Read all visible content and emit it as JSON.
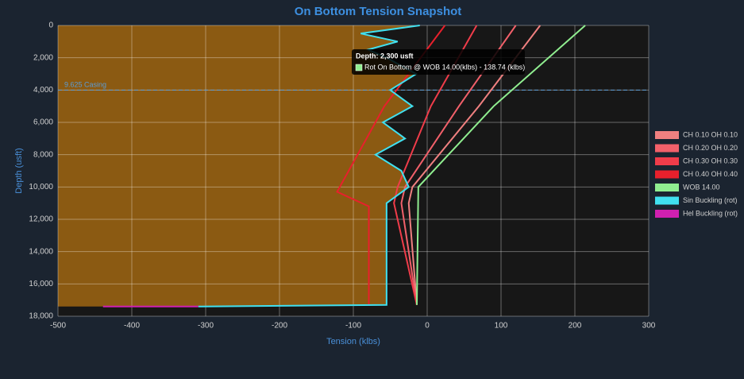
{
  "chart_data": {
    "type": "line",
    "title": "On Bottom Tension Snapshot",
    "x_label": "Tension (klbs)",
    "y_label": "Depth (usft)",
    "xlim": [
      -500,
      300
    ],
    "xticks": [
      -500,
      -400,
      -300,
      -200,
      -100,
      0,
      100,
      200,
      300
    ],
    "ylim": [
      0,
      18000
    ],
    "yticks": [
      0,
      {
        "value": 2000,
        "label": "2,000"
      },
      {
        "value": 4000,
        "label": "4,000"
      },
      {
        "value": 6000,
        "label": "6,000"
      },
      {
        "value": 8000,
        "label": "8,000"
      },
      {
        "value": 10000,
        "label": "10,000"
      },
      {
        "value": 12000,
        "label": "12,000"
      },
      {
        "value": 14000,
        "label": "14,000"
      },
      {
        "value": 16000,
        "label": "16,000"
      },
      {
        "value": 18000,
        "label": "18,000"
      }
    ],
    "y_inverted": true,
    "grid": true,
    "legend": "right",
    "casing": {
      "label": "9.625 Casing",
      "depth": 4000
    },
    "tooltip": {
      "title": "Depth: 2,300 usft",
      "text": "Rot On Bottom @ WOB 14.00(klbs) - 138.74 (klbs)",
      "color": "#90ee90"
    },
    "series": [
      {
        "name": "CH 0.10 OH 0.10",
        "color": "#f08080",
        "x": [
          153,
          70,
          -20,
          -25,
          -14
        ],
        "values": [
          0,
          5000,
          10000,
          11000,
          17300
        ]
      },
      {
        "name": "CH 0.20 OH 0.20",
        "color": "#f2606a",
        "x": [
          120,
          43,
          -30,
          -35,
          -14
        ],
        "values": [
          0,
          5000,
          10000,
          11000,
          17300
        ]
      },
      {
        "name": "CH 0.30 OH 0.30",
        "color": "#f03c4a",
        "x": [
          67,
          5,
          -40,
          -45,
          -14
        ],
        "values": [
          0,
          5000,
          10000,
          11000,
          17300
        ]
      },
      {
        "name": "CH 0.40 OH 0.40",
        "color": "#e8202c",
        "x": [
          24,
          -58,
          -122,
          -79,
          -79
        ],
        "values": [
          0,
          5000,
          10300,
          11200,
          17300
        ]
      },
      {
        "name": "WOB 14.00",
        "color": "#90ee90",
        "x": [
          214,
          90,
          -12,
          -14
        ],
        "values": [
          0,
          5000,
          10000,
          17300
        ]
      },
      {
        "name": "Sin Buckling (rot)",
        "color": "#40e0f0",
        "fill": "#8b5a12",
        "x": [
          -10,
          -90,
          -40,
          -80,
          -55,
          -15,
          -50,
          -20,
          -60,
          -30,
          -70,
          -35,
          -25,
          -55,
          -55,
          -310
        ],
        "values": [
          0,
          500,
          1000,
          1500,
          2000,
          3000,
          4000,
          5000,
          6000,
          7000,
          8000,
          9000,
          10000,
          11000,
          17300,
          17400
        ]
      },
      {
        "name": "Hel Buckling (rot)",
        "color": "#d020b0",
        "x": [
          -439,
          -310
        ],
        "values": [
          17400,
          17400
        ]
      }
    ]
  }
}
